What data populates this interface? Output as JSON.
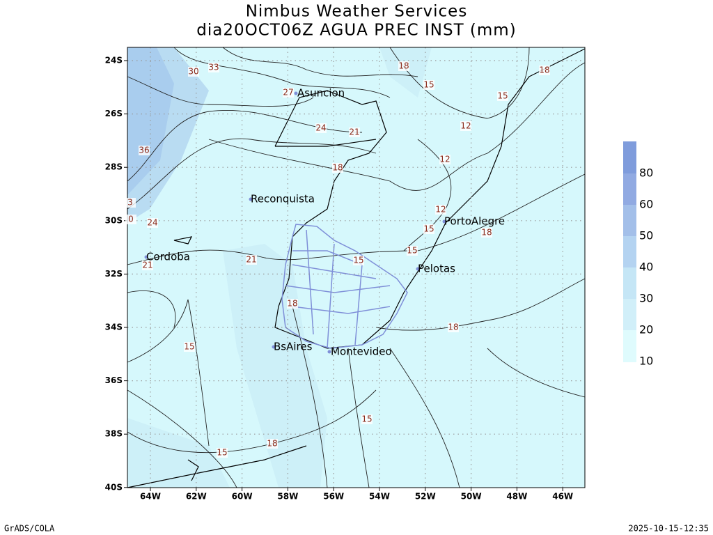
{
  "header": {
    "title": "Nimbus Weather Services",
    "subtitle": "dia20OCT06Z AGUA PREC INST (mm)"
  },
  "map": {
    "lat_labels": [
      "24S",
      "26S",
      "28S",
      "30S",
      "32S",
      "34S",
      "36S",
      "38S",
      "40S"
    ],
    "lon_labels": [
      "64W",
      "62W",
      "60W",
      "58W",
      "56W",
      "54W",
      "52W",
      "50W",
      "48W",
      "46W"
    ],
    "cities": [
      "Asuncion",
      "Reconquista",
      "Cordoba",
      "PortoAlegre",
      "Pelotas",
      "BsAires",
      "Montevideo"
    ],
    "contour_labels": [
      30,
      33,
      27,
      24,
      21,
      36,
      18,
      18,
      15,
      18,
      15,
      12,
      12,
      12,
      15,
      18,
      15,
      15,
      21,
      21,
      24,
      18,
      18,
      15,
      15,
      18,
      15,
      3,
      0
    ]
  },
  "colorbar": {
    "labels": [
      80,
      60,
      50,
      40,
      30,
      20,
      10
    ]
  },
  "footer": {
    "left": "GrADS/COLA",
    "right": "2025-10-15-12:35"
  }
}
